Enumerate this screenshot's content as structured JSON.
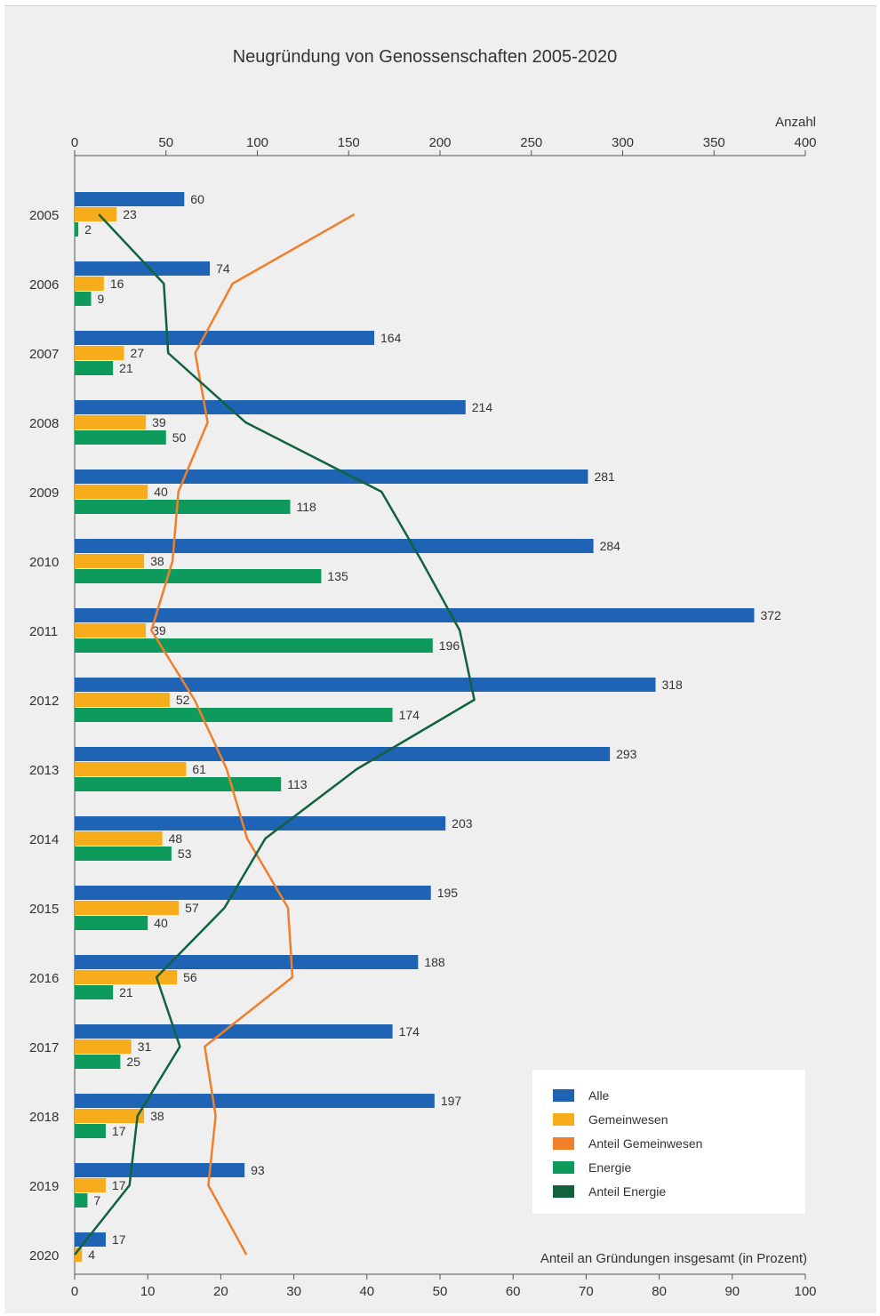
{
  "chart_data": {
    "type": "bar",
    "orientation": "horizontal",
    "title": "Neugründung von Genossenschaften 2005-2020",
    "top_axis": {
      "label": "Anzahl",
      "range": [
        0,
        400
      ],
      "ticks": [
        "0",
        "50",
        "100",
        "150",
        "200",
        "250",
        "300",
        "350",
        "400"
      ]
    },
    "bottom_axis": {
      "label": "Anteil an Gründungen insgesamt (in Prozent)",
      "range": [
        0,
        100
      ],
      "ticks": [
        "0",
        "10",
        "20",
        "30",
        "40",
        "50",
        "60",
        "70",
        "80",
        "90",
        "100"
      ]
    },
    "categories": [
      "2005",
      "2006",
      "2007",
      "2008",
      "2009",
      "2010",
      "2011",
      "2012",
      "2013",
      "2014",
      "2015",
      "2016",
      "2017",
      "2018",
      "2019",
      "2020"
    ],
    "series": [
      {
        "name": "Alle",
        "type": "bar",
        "axis": "top",
        "color": "#1f63b4",
        "values": [
          60,
          74,
          164,
          214,
          281,
          284,
          372,
          318,
          293,
          203,
          195,
          188,
          174,
          197,
          93,
          17
        ]
      },
      {
        "name": "Gemeinwesen",
        "type": "bar",
        "axis": "top",
        "color": "#f7ad1b",
        "values": [
          23,
          16,
          27,
          39,
          40,
          38,
          39,
          52,
          61,
          48,
          57,
          56,
          31,
          38,
          17,
          4
        ]
      },
      {
        "name": "Anteil Gemeinwesen",
        "type": "line",
        "axis": "bottom",
        "color": "#f07f2a",
        "values": [
          38.3,
          21.6,
          16.5,
          18.2,
          14.2,
          13.4,
          10.5,
          16.4,
          20.8,
          23.6,
          29.2,
          29.8,
          17.8,
          19.3,
          18.3,
          23.5
        ]
      },
      {
        "name": "Energie",
        "type": "bar",
        "axis": "top",
        "color": "#0e9a5d",
        "values": [
          2,
          9,
          21,
          50,
          118,
          135,
          196,
          174,
          113,
          53,
          40,
          21,
          25,
          17,
          7,
          null
        ]
      },
      {
        "name": "Anteil Energie",
        "type": "line",
        "axis": "bottom",
        "color": "#13623e",
        "values": [
          3.3,
          12.2,
          12.8,
          23.4,
          42.0,
          47.5,
          52.7,
          54.7,
          38.6,
          26.1,
          20.5,
          11.2,
          14.4,
          8.6,
          7.5,
          0
        ]
      }
    ],
    "legend_position": "bottom-right",
    "grid": false
  }
}
